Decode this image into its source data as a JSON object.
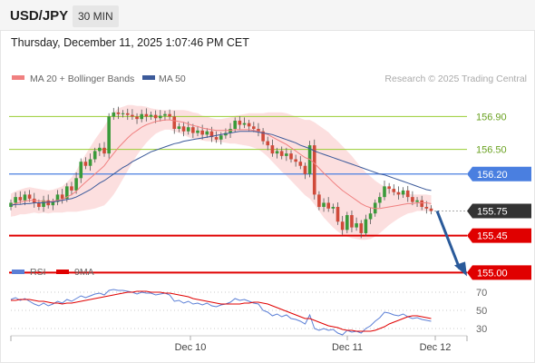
{
  "header": {
    "symbol": "USD/JPY",
    "timeframe": "30 MIN",
    "datetime": "Thursday, December 11, 2025 1:07:46 PM CET"
  },
  "legend": {
    "ma20_label": "MA 20 + Bollinger Bands",
    "ma50_label": "MA 50",
    "credit": "Research © 2025 Trading Central",
    "rsi_label": "RSI",
    "rsi_ma_label": "9MA"
  },
  "colors": {
    "ma20": "#f08080",
    "ma50": "#3c5a9a",
    "bollinger_fill": "#fcd9d9",
    "resistance": "#9acd32",
    "pivot": "#4a7fe0",
    "support": "#e00000",
    "arrow": "#2a5a9a",
    "current_price_box": "#333333",
    "rsi": "#5b7fd6",
    "rsi_ma": "#e00000"
  },
  "chart_data": [
    {
      "type": "candlestick",
      "title": "",
      "x_ticks": [
        "Dec 10",
        "Dec 11",
        "Dec 12"
      ],
      "ylim": [
        154.96,
        157.17
      ],
      "levels": [
        {
          "value": 156.9,
          "label": "156.90",
          "kind": "resistance"
        },
        {
          "value": 156.5,
          "label": "156.50",
          "kind": "resistance"
        },
        {
          "value": 156.2,
          "label": "156.20",
          "kind": "pivot"
        },
        {
          "value": 155.75,
          "label": "155.75",
          "kind": "current"
        },
        {
          "value": 155.45,
          "label": "155.45",
          "kind": "support"
        },
        {
          "value": 155.0,
          "label": "155.00",
          "kind": "support"
        }
      ],
      "forecast": {
        "from": 155.75,
        "to": 155.0,
        "direction": "down"
      },
      "close": [
        155.85,
        155.92,
        155.88,
        155.95,
        155.9,
        155.85,
        155.8,
        155.88,
        155.82,
        155.86,
        155.95,
        155.9,
        156.05,
        156.0,
        156.15,
        156.35,
        156.3,
        156.38,
        156.48,
        156.52,
        156.45,
        156.9,
        156.95,
        156.93,
        156.94,
        156.92,
        156.9,
        156.87,
        156.93,
        156.9,
        156.92,
        156.88,
        156.91,
        156.93,
        156.9,
        156.75,
        156.78,
        156.72,
        156.77,
        156.7,
        156.73,
        156.68,
        156.72,
        156.65,
        156.62,
        156.67,
        156.7,
        156.75,
        156.85,
        156.8,
        156.82,
        156.78,
        156.75,
        156.72,
        156.6,
        156.55,
        156.45,
        156.48,
        156.42,
        156.45,
        156.38,
        156.35,
        156.3,
        156.2,
        156.55,
        155.95,
        155.8,
        155.85,
        155.78,
        155.8,
        155.62,
        155.52,
        155.7,
        155.55,
        155.6,
        155.48,
        155.65,
        155.72,
        155.85,
        155.92,
        156.05,
        156.02,
        155.98,
        155.95,
        156.0,
        155.92,
        155.86,
        155.88,
        155.8,
        155.78,
        155.75
      ],
      "ma20": [
        155.82,
        155.84,
        155.86,
        155.87,
        155.88,
        155.88,
        155.87,
        155.87,
        155.86,
        155.87,
        155.88,
        155.89,
        155.92,
        155.95,
        155.99,
        156.05,
        156.1,
        156.15,
        156.2,
        156.25,
        156.3,
        156.38,
        156.45,
        156.52,
        156.58,
        156.64,
        156.69,
        156.73,
        156.77,
        156.8,
        156.82,
        156.84,
        156.85,
        156.86,
        156.86,
        156.85,
        156.84,
        156.83,
        156.81,
        156.79,
        156.78,
        156.76,
        156.75,
        156.74,
        156.73,
        156.73,
        156.73,
        156.73,
        156.74,
        156.74,
        156.74,
        156.74,
        156.73,
        156.72,
        156.7,
        156.68,
        156.65,
        156.62,
        156.59,
        156.56,
        156.52,
        156.48,
        156.44,
        156.4,
        156.38,
        156.33,
        156.27,
        156.21,
        156.16,
        156.1,
        156.05,
        156.0,
        155.96,
        155.92,
        155.88,
        155.84,
        155.81,
        155.79,
        155.78,
        155.78,
        155.79,
        155.8,
        155.81,
        155.82,
        155.83,
        155.84,
        155.84,
        155.85,
        155.85,
        155.85,
        155.84
      ],
      "ma50": [
        155.82,
        155.83,
        155.83,
        155.84,
        155.84,
        155.85,
        155.85,
        155.85,
        155.86,
        155.86,
        155.87,
        155.88,
        155.89,
        155.9,
        155.92,
        155.95,
        155.98,
        156.01,
        156.05,
        156.09,
        156.12,
        156.16,
        156.2,
        156.24,
        156.28,
        156.31,
        156.35,
        156.38,
        156.41,
        156.44,
        156.47,
        156.49,
        156.51,
        156.53,
        156.55,
        156.57,
        156.58,
        156.6,
        156.61,
        156.62,
        156.63,
        156.64,
        156.65,
        156.66,
        156.67,
        156.68,
        156.69,
        156.7,
        156.71,
        156.72,
        156.72,
        156.72,
        156.72,
        156.71,
        156.7,
        156.69,
        156.68,
        156.66,
        156.64,
        156.62,
        156.6,
        156.58,
        156.55,
        156.53,
        156.51,
        156.48,
        156.46,
        156.44,
        156.42,
        156.4,
        156.38,
        156.36,
        156.34,
        156.32,
        156.3,
        156.28,
        156.26,
        156.24,
        156.22,
        156.2,
        156.19,
        156.17,
        156.15,
        156.13,
        156.11,
        156.09,
        156.07,
        156.05,
        156.03,
        156.01,
        156.0
      ],
      "bollinger_width": [
        0.14,
        0.15,
        0.15,
        0.16,
        0.16,
        0.15,
        0.15,
        0.14,
        0.14,
        0.14,
        0.15,
        0.16,
        0.18,
        0.21,
        0.25,
        0.3,
        0.34,
        0.38,
        0.42,
        0.45,
        0.48,
        0.5,
        0.5,
        0.48,
        0.44,
        0.4,
        0.35,
        0.3,
        0.26,
        0.22,
        0.18,
        0.15,
        0.13,
        0.12,
        0.12,
        0.13,
        0.14,
        0.15,
        0.16,
        0.16,
        0.16,
        0.15,
        0.15,
        0.14,
        0.14,
        0.14,
        0.15,
        0.16,
        0.17,
        0.18,
        0.19,
        0.2,
        0.21,
        0.22,
        0.24,
        0.27,
        0.3,
        0.33,
        0.36,
        0.38,
        0.4,
        0.42,
        0.44,
        0.46,
        0.48,
        0.5,
        0.52,
        0.54,
        0.55,
        0.55,
        0.55,
        0.54,
        0.52,
        0.5,
        0.47,
        0.44,
        0.41,
        0.38,
        0.34,
        0.3,
        0.26,
        0.22,
        0.19,
        0.16,
        0.14,
        0.12,
        0.11,
        0.1,
        0.1,
        0.1,
        0.1
      ]
    },
    {
      "type": "line",
      "title": "",
      "ylim": [
        20,
        80
      ],
      "y_ticks": [
        70,
        50,
        30
      ],
      "series": [
        {
          "name": "RSI",
          "values": [
            62,
            64,
            61,
            63,
            60,
            57,
            55,
            58,
            55,
            57,
            60,
            58,
            62,
            60,
            63,
            66,
            64,
            66,
            68,
            69,
            67,
            72,
            73,
            72,
            72,
            71,
            70,
            68,
            70,
            69,
            69,
            67,
            68,
            69,
            67,
            60,
            61,
            58,
            60,
            57,
            58,
            56,
            58,
            55,
            54,
            56,
            57,
            59,
            63,
            61,
            62,
            60,
            58,
            57,
            50,
            48,
            44,
            46,
            43,
            45,
            41,
            40,
            38,
            35,
            45,
            30,
            28,
            30,
            28,
            29,
            25,
            23,
            28,
            26,
            27,
            25,
            30,
            33,
            38,
            42,
            48,
            47,
            45,
            44,
            46,
            43,
            41,
            42,
            40,
            39,
            38
          ]
        },
        {
          "name": "9MA",
          "values": [
            61,
            61,
            62,
            62,
            62,
            61,
            60,
            60,
            59,
            58,
            58,
            57,
            58,
            58,
            59,
            60,
            61,
            62,
            63,
            64,
            65,
            66,
            67,
            68,
            69,
            70,
            70,
            71,
            71,
            71,
            70,
            70,
            70,
            69,
            69,
            68,
            67,
            66,
            65,
            63,
            62,
            61,
            60,
            59,
            58,
            57,
            57,
            57,
            57,
            57,
            58,
            58,
            59,
            59,
            58,
            57,
            55,
            53,
            51,
            49,
            47,
            45,
            43,
            41,
            41,
            39,
            37,
            35,
            33,
            32,
            31,
            29,
            28,
            28,
            27,
            27,
            27,
            27,
            28,
            30,
            32,
            35,
            37,
            39,
            41,
            43,
            44,
            44,
            43,
            42,
            41
          ]
        }
      ]
    }
  ]
}
